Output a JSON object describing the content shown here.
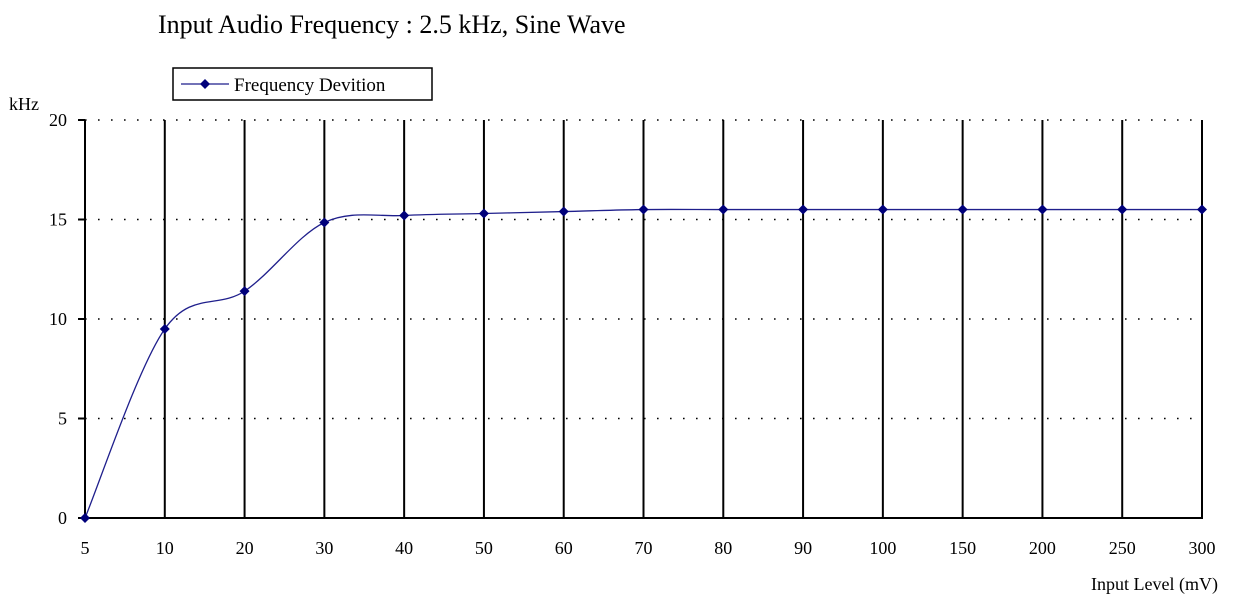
{
  "chart_data": {
    "type": "line",
    "title": "Input  Audio Frequency : 2.5 kHz, Sine Wave",
    "xlabel": "Input Level (mV)",
    "ylabel": "kHz",
    "categories": [
      "5",
      "10",
      "20",
      "30",
      "40",
      "50",
      "60",
      "70",
      "80",
      "90",
      "100",
      "150",
      "200",
      "250",
      "300"
    ],
    "series": [
      {
        "name": "Frequency Devition",
        "values": [
          0,
          9.5,
          11.4,
          14.85,
          15.2,
          15.3,
          15.4,
          15.5,
          15.5,
          15.5,
          15.5,
          15.5,
          15.5,
          15.5,
          15.5
        ]
      }
    ],
    "ylim": [
      0,
      20
    ],
    "yticks": [
      0,
      5,
      10,
      15,
      20
    ],
    "grid": {
      "vertical": "solid",
      "horizontal": "dotted"
    },
    "legend_position": "top-left"
  },
  "colors": {
    "series_line": "#1f1f8c",
    "series_marker": "#00007a",
    "grid": "#000000"
  }
}
